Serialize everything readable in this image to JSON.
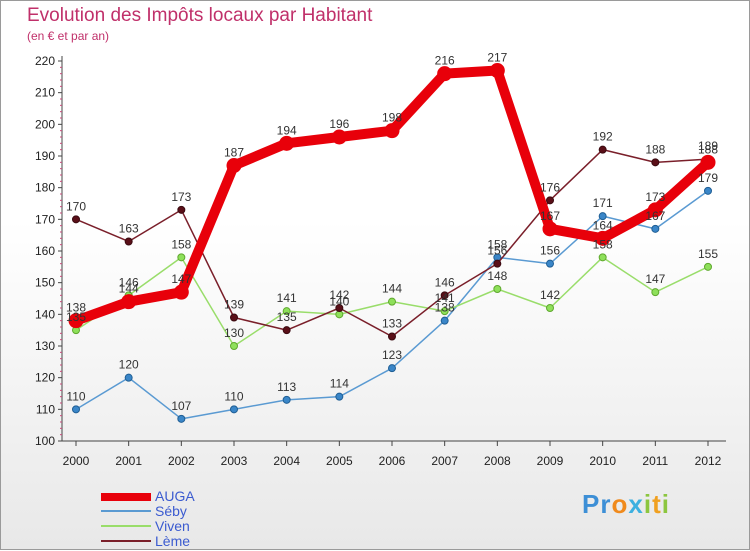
{
  "chart_data": {
    "type": "line",
    "title": "Evolution des Impôts locaux par Habitant",
    "subtitle": "(en € et par an)",
    "xlabel": "",
    "ylabel": "",
    "categories": [
      "2000",
      "2001",
      "2002",
      "2003",
      "2004",
      "2005",
      "2006",
      "2007",
      "2008",
      "2009",
      "2010",
      "2011",
      "2012"
    ],
    "ylim": [
      100,
      220
    ],
    "yticks": [
      100,
      110,
      120,
      130,
      140,
      150,
      160,
      170,
      180,
      190,
      200,
      210,
      220
    ],
    "grid": false,
    "legend_position": "bottom-left",
    "series": [
      {
        "name": "AUGA",
        "color": "#e8000a",
        "values": [
          138,
          144,
          147,
          187,
          194,
          196,
          198,
          216,
          217,
          167,
          164,
          173,
          188
        ]
      },
      {
        "name": "Séby",
        "color": "#5a9ad2",
        "values": [
          110,
          120,
          107,
          110,
          113,
          114,
          123,
          138,
          158,
          156,
          171,
          167,
          179
        ]
      },
      {
        "name": "Viven",
        "color": "#99dd6a",
        "values": [
          135,
          146,
          158,
          130,
          141,
          140,
          144,
          141,
          148,
          142,
          158,
          147,
          155
        ]
      },
      {
        "name": "Lème",
        "color": "#7a1f2a",
        "values": [
          170,
          163,
          173,
          139,
          135,
          142,
          133,
          146,
          156,
          176,
          192,
          188,
          189
        ]
      }
    ]
  },
  "logo": {
    "parts": [
      "Pr",
      "o",
      "x",
      "i",
      "t",
      "i"
    ]
  }
}
